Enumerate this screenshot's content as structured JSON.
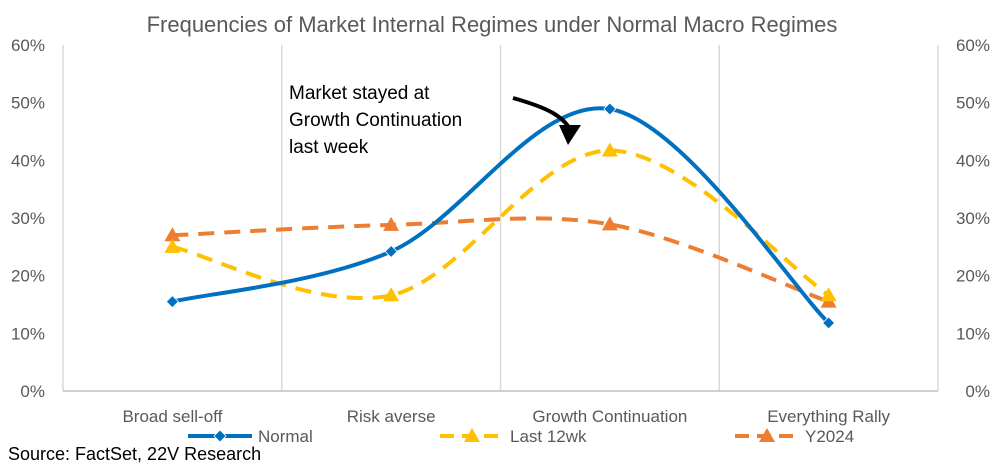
{
  "chart_data": {
    "type": "line",
    "title": "Frequencies of Market Internal Regimes under Normal Macro Regimes",
    "categories": [
      "Broad sell-off",
      "Risk averse",
      "Growth Continuation",
      "Everything Rally"
    ],
    "ylim": [
      0,
      60
    ],
    "y_ticks": [
      "0%",
      "10%",
      "20%",
      "30%",
      "40%",
      "50%",
      "60%"
    ],
    "secondary_y_ticks": [
      "0%",
      "10%",
      "20%",
      "30%",
      "40%",
      "50%",
      "60%"
    ],
    "grid": "vertical lines between categories",
    "legend_position": "bottom",
    "series": [
      {
        "name": "Normal",
        "values": [
          15.5,
          24.2,
          48.9,
          11.8
        ],
        "color": "#0070C0",
        "marker": "diamond",
        "style": "solid-smooth"
      },
      {
        "name": "Last 12wk",
        "values": [
          25.0,
          16.6,
          41.7,
          16.6
        ],
        "color": "#FFC000",
        "marker": "triangle",
        "style": "dashed-smooth"
      },
      {
        "name": "Y2024",
        "values": [
          27.0,
          28.8,
          28.9,
          15.5
        ],
        "color": "#ED7D31",
        "marker": "triangle",
        "style": "dashed-smooth"
      }
    ],
    "annotation": [
      "Market stayed at",
      "Growth Continuation",
      "last week"
    ]
  },
  "source": "Source: FactSet, 22V Research"
}
